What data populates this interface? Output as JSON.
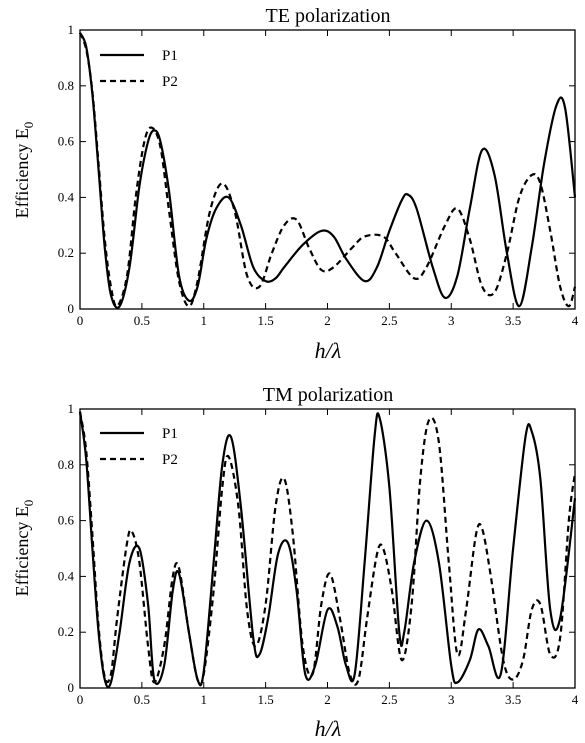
{
  "chart_data": [
    {
      "type": "line",
      "title": "TE polarization",
      "xlabel": "h/λ",
      "ylabel": "Efficiency E",
      "ylabel_subscript": "0",
      "xlim": [
        0,
        4
      ],
      "ylim": [
        0,
        1
      ],
      "xticks": [
        0,
        0.5,
        1,
        1.5,
        2,
        2.5,
        3,
        3.5,
        4
      ],
      "xtick_labels": [
        "0",
        "0.5",
        "1",
        "1.5",
        "2",
        "2.5",
        "3",
        "3.5",
        "4"
      ],
      "yticks": [
        0,
        0.2,
        0.4,
        0.6,
        0.8,
        1
      ],
      "ytick_labels": [
        "0",
        "0.2",
        "0.4",
        "0.6",
        "0.8",
        "1"
      ],
      "grid": false,
      "legend_position": "top-left",
      "series": [
        {
          "name": "P1",
          "style": "solid",
          "x": [
            0,
            0.05,
            0.1,
            0.15,
            0.2,
            0.25,
            0.32,
            0.4,
            0.48,
            0.55,
            0.6,
            0.65,
            0.72,
            0.8,
            0.88,
            0.95,
            1.02,
            1.1,
            1.2,
            1.3,
            1.4,
            1.5,
            1.58,
            1.65,
            1.8,
            1.95,
            2.05,
            2.15,
            2.3,
            2.4,
            2.5,
            2.6,
            2.65,
            2.72,
            2.85,
            2.95,
            3.05,
            3.15,
            3.25,
            3.35,
            3.45,
            3.55,
            3.65,
            3.75,
            3.85,
            3.92,
            4.0
          ],
          "y": [
            0.99,
            0.94,
            0.77,
            0.5,
            0.22,
            0.05,
            0.01,
            0.15,
            0.44,
            0.6,
            0.64,
            0.6,
            0.42,
            0.12,
            0.03,
            0.08,
            0.25,
            0.36,
            0.4,
            0.3,
            0.15,
            0.1,
            0.11,
            0.15,
            0.23,
            0.28,
            0.26,
            0.18,
            0.1,
            0.15,
            0.28,
            0.39,
            0.41,
            0.36,
            0.15,
            0.04,
            0.12,
            0.36,
            0.57,
            0.48,
            0.2,
            0.01,
            0.22,
            0.52,
            0.73,
            0.72,
            0.4
          ]
        },
        {
          "name": "P2",
          "style": "dashed",
          "x": [
            0,
            0.05,
            0.1,
            0.15,
            0.2,
            0.25,
            0.3,
            0.38,
            0.45,
            0.52,
            0.58,
            0.65,
            0.72,
            0.8,
            0.88,
            0.95,
            1.05,
            1.15,
            1.25,
            1.35,
            1.45,
            1.55,
            1.65,
            1.75,
            1.85,
            1.95,
            2.05,
            2.2,
            2.3,
            2.45,
            2.55,
            2.7,
            2.8,
            2.95,
            3.05,
            3.15,
            3.25,
            3.35,
            3.45,
            3.55,
            3.65,
            3.72,
            3.8,
            3.88,
            3.95,
            4.0
          ],
          "y": [
            0.99,
            0.93,
            0.78,
            0.52,
            0.25,
            0.08,
            0.01,
            0.12,
            0.4,
            0.6,
            0.65,
            0.58,
            0.35,
            0.1,
            0.01,
            0.1,
            0.35,
            0.45,
            0.35,
            0.12,
            0.08,
            0.2,
            0.3,
            0.32,
            0.22,
            0.14,
            0.15,
            0.22,
            0.26,
            0.26,
            0.2,
            0.11,
            0.15,
            0.3,
            0.36,
            0.25,
            0.08,
            0.06,
            0.2,
            0.4,
            0.48,
            0.45,
            0.28,
            0.08,
            0.01,
            0.08
          ]
        }
      ]
    },
    {
      "type": "line",
      "title": "TM polarization",
      "xlabel": "h/λ",
      "ylabel": "Efficiency E",
      "ylabel_subscript": "0",
      "xlim": [
        0,
        4
      ],
      "ylim": [
        0,
        1
      ],
      "xticks": [
        0,
        0.5,
        1,
        1.5,
        2,
        2.5,
        3,
        3.5,
        4
      ],
      "xtick_labels": [
        "0",
        "0.5",
        "1",
        "1.5",
        "2",
        "2.5",
        "3",
        "3.5",
        "4"
      ],
      "yticks": [
        0,
        0.2,
        0.4,
        0.6,
        0.8,
        1
      ],
      "ytick_labels": [
        "0",
        "0.2",
        "0.4",
        "0.6",
        "0.8",
        "1"
      ],
      "grid": false,
      "legend_position": "top-left",
      "series": [
        {
          "name": "P1",
          "style": "solid",
          "x": [
            0,
            0.05,
            0.1,
            0.15,
            0.2,
            0.25,
            0.32,
            0.4,
            0.48,
            0.55,
            0.6,
            0.68,
            0.75,
            0.8,
            0.88,
            0.95,
            1.0,
            1.08,
            1.15,
            1.22,
            1.3,
            1.4,
            1.45,
            1.52,
            1.6,
            1.68,
            1.75,
            1.82,
            1.9,
            2.0,
            2.08,
            2.15,
            2.22,
            2.3,
            2.38,
            2.42,
            2.5,
            2.58,
            2.62,
            2.7,
            2.8,
            2.9,
            3.0,
            3.05,
            3.15,
            3.22,
            3.3,
            3.4,
            3.5,
            3.6,
            3.65,
            3.72,
            3.8,
            3.88,
            4.0
          ],
          "y": [
            0.99,
            0.82,
            0.5,
            0.2,
            0.03,
            0.02,
            0.2,
            0.45,
            0.5,
            0.3,
            0.03,
            0.08,
            0.35,
            0.41,
            0.2,
            0.03,
            0.06,
            0.45,
            0.8,
            0.9,
            0.65,
            0.18,
            0.12,
            0.25,
            0.48,
            0.52,
            0.35,
            0.05,
            0.08,
            0.28,
            0.22,
            0.08,
            0.05,
            0.45,
            0.9,
            0.97,
            0.72,
            0.2,
            0.2,
            0.45,
            0.6,
            0.45,
            0.08,
            0.02,
            0.1,
            0.21,
            0.15,
            0.05,
            0.5,
            0.9,
            0.92,
            0.75,
            0.28,
            0.25,
            0.68
          ]
        },
        {
          "name": "P2",
          "style": "dashed",
          "x": [
            0,
            0.05,
            0.1,
            0.15,
            0.2,
            0.25,
            0.3,
            0.38,
            0.42,
            0.48,
            0.55,
            0.6,
            0.68,
            0.75,
            0.8,
            0.88,
            0.95,
            1.0,
            1.08,
            1.15,
            1.2,
            1.28,
            1.35,
            1.42,
            1.5,
            1.58,
            1.65,
            1.72,
            1.8,
            1.88,
            1.95,
            2.02,
            2.1,
            2.18,
            2.25,
            2.32,
            2.4,
            2.45,
            2.52,
            2.6,
            2.68,
            2.75,
            2.82,
            2.9,
            2.98,
            3.05,
            3.12,
            3.2,
            3.25,
            3.32,
            3.42,
            3.5,
            3.58,
            3.65,
            3.72,
            3.8,
            3.88,
            3.95,
            4.0
          ],
          "y": [
            0.99,
            0.85,
            0.55,
            0.22,
            0.04,
            0.05,
            0.25,
            0.52,
            0.56,
            0.45,
            0.15,
            0.02,
            0.15,
            0.4,
            0.43,
            0.2,
            0.03,
            0.05,
            0.35,
            0.72,
            0.83,
            0.65,
            0.28,
            0.15,
            0.3,
            0.65,
            0.75,
            0.55,
            0.15,
            0.05,
            0.3,
            0.41,
            0.25,
            0.05,
            0.03,
            0.25,
            0.48,
            0.5,
            0.35,
            0.1,
            0.3,
            0.75,
            0.96,
            0.88,
            0.45,
            0.12,
            0.28,
            0.55,
            0.57,
            0.4,
            0.1,
            0.03,
            0.1,
            0.28,
            0.3,
            0.12,
            0.18,
            0.6,
            0.77
          ]
        }
      ]
    }
  ]
}
